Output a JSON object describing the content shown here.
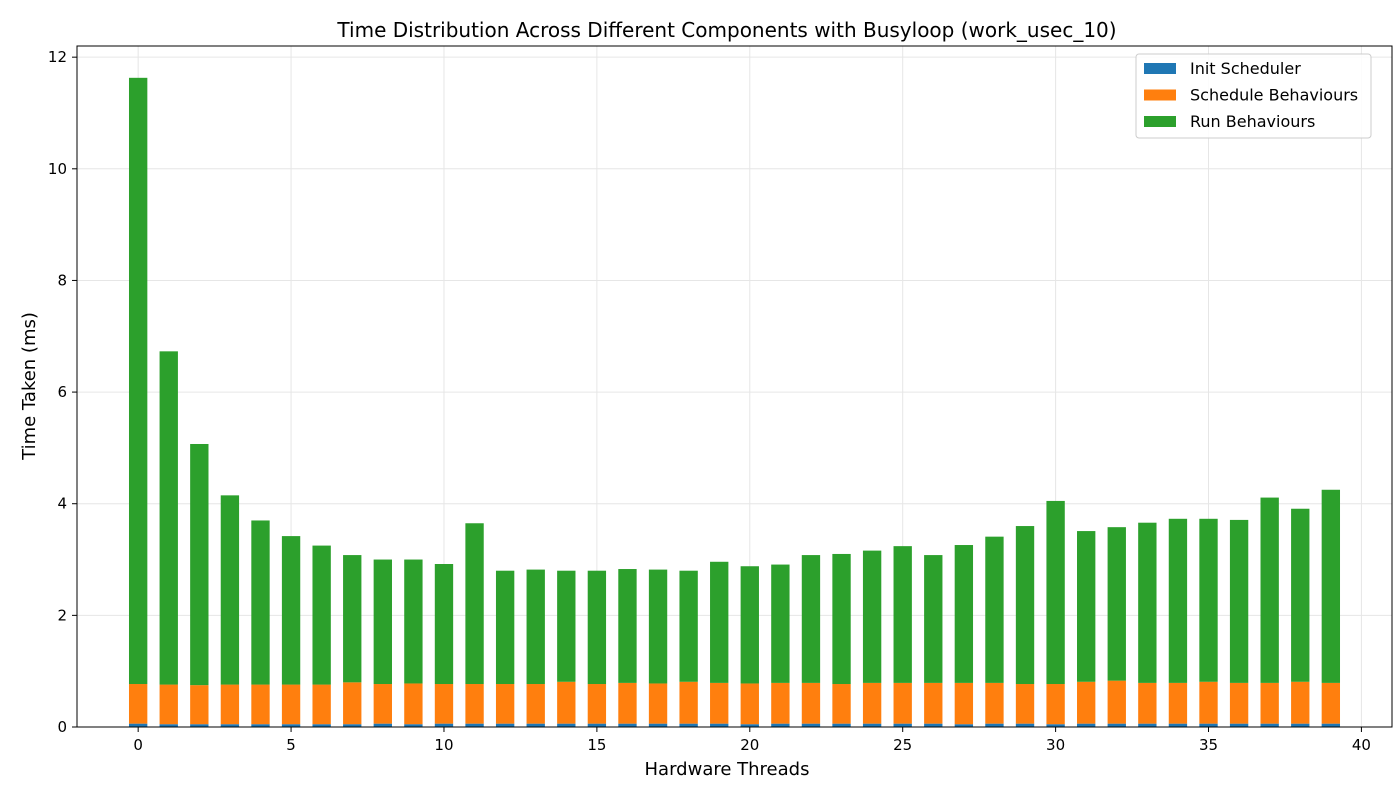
{
  "chart_data": {
    "type": "bar",
    "stacked": true,
    "title": "Time Distribution Across Different Components with Busyloop (work_usec_10)",
    "xlabel": "Hardware Threads",
    "ylabel": "Time Taken (ms)",
    "xlim": [
      -2,
      41
    ],
    "ylim": [
      0,
      12.2
    ],
    "xticks": [
      0,
      5,
      10,
      15,
      20,
      25,
      30,
      35,
      40
    ],
    "yticks": [
      0,
      2,
      4,
      6,
      8,
      10,
      12
    ],
    "grid": true,
    "legend_position": "top-right",
    "x": [
      0,
      1,
      2,
      3,
      4,
      5,
      6,
      7,
      8,
      9,
      10,
      11,
      12,
      13,
      14,
      15,
      16,
      17,
      18,
      19,
      20,
      21,
      22,
      23,
      24,
      25,
      26,
      27,
      28,
      29,
      30,
      31,
      32,
      33,
      34,
      35,
      36,
      37,
      38,
      39
    ],
    "series": [
      {
        "name": "Init Scheduler",
        "color": "#1f77b4",
        "values": [
          0.06,
          0.05,
          0.05,
          0.05,
          0.05,
          0.05,
          0.05,
          0.05,
          0.06,
          0.05,
          0.06,
          0.06,
          0.06,
          0.06,
          0.06,
          0.06,
          0.06,
          0.06,
          0.06,
          0.06,
          0.05,
          0.06,
          0.06,
          0.06,
          0.06,
          0.06,
          0.06,
          0.05,
          0.06,
          0.06,
          0.05,
          0.06,
          0.06,
          0.06,
          0.06,
          0.06,
          0.06,
          0.06,
          0.06,
          0.06
        ]
      },
      {
        "name": "Schedule Behaviours",
        "color": "#ff7f0e",
        "values": [
          0.71,
          0.71,
          0.7,
          0.71,
          0.71,
          0.71,
          0.71,
          0.75,
          0.71,
          0.73,
          0.71,
          0.71,
          0.71,
          0.71,
          0.75,
          0.71,
          0.73,
          0.72,
          0.75,
          0.73,
          0.73,
          0.73,
          0.73,
          0.71,
          0.73,
          0.73,
          0.73,
          0.74,
          0.73,
          0.71,
          0.72,
          0.75,
          0.77,
          0.73,
          0.73,
          0.75,
          0.73,
          0.73,
          0.75,
          0.73
        ]
      },
      {
        "name": "Run Behaviours",
        "color": "#2ca02c",
        "values": [
          10.86,
          5.97,
          4.32,
          3.39,
          2.94,
          2.66,
          2.49,
          2.28,
          2.23,
          2.22,
          2.15,
          2.88,
          2.03,
          2.05,
          1.99,
          2.03,
          2.04,
          2.04,
          1.99,
          2.17,
          2.1,
          2.12,
          2.29,
          2.33,
          2.37,
          2.45,
          2.29,
          2.47,
          2.62,
          2.83,
          3.28,
          2.7,
          2.75,
          2.87,
          2.94,
          2.92,
          2.92,
          3.32,
          3.1,
          3.46
        ]
      }
    ]
  }
}
